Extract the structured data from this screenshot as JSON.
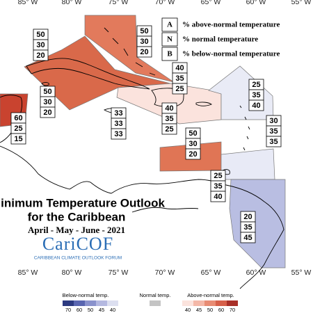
{
  "map": {
    "lon_labels_top": [
      "85° W",
      "80° W",
      "75° W",
      "70° W",
      "65° W",
      "60° W",
      "55° W"
    ],
    "lon_labels_bottom": [
      "85° W",
      "80° W",
      "75° W",
      "70° W",
      "65° W",
      "60° W",
      "55° W"
    ]
  },
  "legend": {
    "rows": [
      {
        "key": "A",
        "text": "% above-normal temperature"
      },
      {
        "key": "N",
        "text": "% normal temperature"
      },
      {
        "key": "B",
        "text": "% below-normal temperature"
      }
    ]
  },
  "title": {
    "line1": "Minimum Temperature Outlook",
    "line2": "for the Caribbean",
    "period": "April - May - June - 2021",
    "logo": "CariCOF",
    "logo_subtitle": "CARIBBEAN CLIMATE OUTLOOK FORUM"
  },
  "regions": [
    {
      "values": [
        50,
        30,
        20
      ]
    },
    {
      "values": [
        50,
        30,
        20
      ]
    },
    {
      "values": [
        50,
        30,
        20
      ]
    },
    {
      "values": [
        60,
        25,
        15
      ]
    },
    {
      "values": [
        33,
        33,
        33
      ]
    },
    {
      "values": [
        40,
        35,
        25
      ]
    },
    {
      "values": [
        40,
        35,
        25
      ]
    },
    {
      "values": [
        25,
        35,
        40
      ]
    },
    {
      "values": [
        30,
        35,
        35
      ]
    },
    {
      "values": [
        50,
        30,
        20
      ]
    },
    {
      "values": [
        25,
        35,
        40
      ]
    },
    {
      "values": [
        20,
        35,
        45
      ]
    }
  ],
  "colorbar": {
    "below": {
      "label": "Below-normal temp.",
      "ticks": [
        70,
        60,
        50,
        45,
        40
      ]
    },
    "normal": {
      "label": "Normal temp."
    },
    "above": {
      "label": "Above-normal temp.",
      "ticks": [
        40,
        45,
        50,
        60,
        70
      ]
    }
  }
}
